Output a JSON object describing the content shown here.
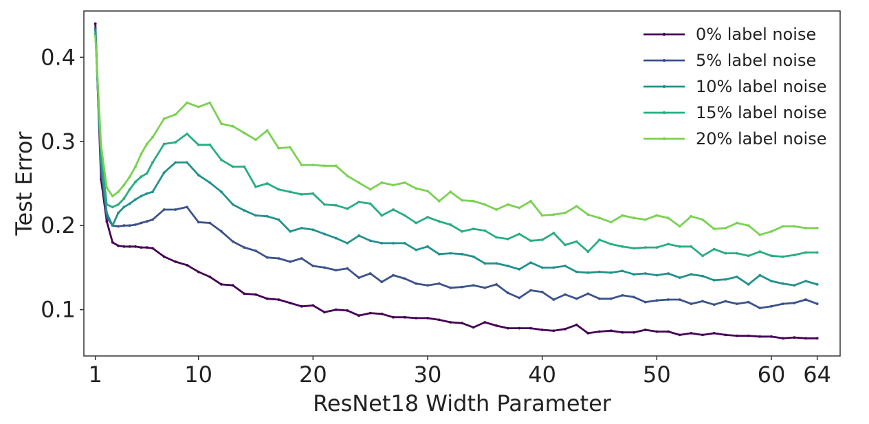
{
  "chart_data": {
    "type": "line",
    "title": "",
    "xlabel": "ResNet18 Width Parameter",
    "ylabel": "Test Error",
    "xlim": [
      0,
      66
    ],
    "ylim": [
      0.045,
      0.455
    ],
    "xticks": [
      1,
      10,
      20,
      30,
      40,
      50,
      60,
      64
    ],
    "yticks": [
      0.1,
      0.2,
      0.3,
      0.4
    ],
    "ytick_labels": [
      "0.1",
      "0.2",
      "0.3",
      "0.4"
    ],
    "grid": false,
    "legend_position": "top-right",
    "x": [
      1,
      1.5,
      2,
      2.5,
      3,
      3.5,
      4,
      4.5,
      5,
      5.5,
      6,
      7,
      8,
      9,
      10,
      11,
      12,
      13,
      14,
      15,
      16,
      17,
      18,
      19,
      20,
      21,
      22,
      23,
      24,
      25,
      26,
      27,
      28,
      29,
      30,
      31,
      32,
      33,
      34,
      35,
      36,
      37,
      38,
      39,
      40,
      41,
      42,
      43,
      44,
      45,
      46,
      47,
      48,
      49,
      50,
      51,
      52,
      53,
      54,
      55,
      56,
      57,
      58,
      59,
      60,
      61,
      62,
      63,
      64
    ],
    "series": [
      {
        "name": "0% label noise",
        "color": "#440154",
        "values": [
          0.44,
          0.255,
          0.205,
          0.18,
          0.176,
          0.175,
          0.175,
          0.175,
          0.174,
          0.174,
          0.173,
          0.163,
          0.157,
          0.153,
          0.145,
          0.139,
          0.13,
          0.129,
          0.119,
          0.118,
          0.113,
          0.112,
          0.108,
          0.104,
          0.105,
          0.097,
          0.1,
          0.099,
          0.093,
          0.096,
          0.095,
          0.091,
          0.091,
          0.09,
          0.09,
          0.088,
          0.085,
          0.084,
          0.079,
          0.085,
          0.081,
          0.078,
          0.078,
          0.078,
          0.076,
          0.075,
          0.077,
          0.082,
          0.072,
          0.074,
          0.075,
          0.073,
          0.073,
          0.076,
          0.074,
          0.074,
          0.07,
          0.072,
          0.07,
          0.072,
          0.07,
          0.069,
          0.069,
          0.068,
          0.068,
          0.066,
          0.067,
          0.066,
          0.066
        ]
      },
      {
        "name": "5% label noise",
        "color": "#3b528b",
        "values": [
          0.435,
          0.265,
          0.21,
          0.2,
          0.199,
          0.2,
          0.2,
          0.201,
          0.203,
          0.205,
          0.207,
          0.219,
          0.219,
          0.222,
          0.204,
          0.203,
          0.193,
          0.181,
          0.174,
          0.17,
          0.162,
          0.161,
          0.157,
          0.161,
          0.152,
          0.15,
          0.147,
          0.149,
          0.138,
          0.143,
          0.133,
          0.141,
          0.137,
          0.131,
          0.129,
          0.131,
          0.126,
          0.127,
          0.129,
          0.126,
          0.13,
          0.12,
          0.114,
          0.123,
          0.121,
          0.112,
          0.118,
          0.113,
          0.119,
          0.113,
          0.113,
          0.117,
          0.115,
          0.109,
          0.111,
          0.112,
          0.112,
          0.107,
          0.11,
          0.106,
          0.11,
          0.107,
          0.109,
          0.102,
          0.104,
          0.107,
          0.108,
          0.112,
          0.107
        ]
      },
      {
        "name": "10% label noise",
        "color": "#21918c",
        "values": [
          0.432,
          0.275,
          0.215,
          0.2,
          0.215,
          0.222,
          0.226,
          0.231,
          0.235,
          0.238,
          0.24,
          0.263,
          0.275,
          0.275,
          0.26,
          0.251,
          0.24,
          0.225,
          0.218,
          0.212,
          0.211,
          0.207,
          0.193,
          0.197,
          0.195,
          0.19,
          0.185,
          0.179,
          0.188,
          0.182,
          0.179,
          0.179,
          0.179,
          0.171,
          0.175,
          0.166,
          0.167,
          0.166,
          0.163,
          0.155,
          0.155,
          0.152,
          0.148,
          0.156,
          0.15,
          0.15,
          0.152,
          0.145,
          0.144,
          0.145,
          0.144,
          0.146,
          0.142,
          0.143,
          0.141,
          0.143,
          0.138,
          0.142,
          0.14,
          0.135,
          0.136,
          0.139,
          0.13,
          0.141,
          0.134,
          0.131,
          0.129,
          0.134,
          0.13
        ]
      },
      {
        "name": "15% label noise",
        "color": "#27ad81",
        "values": [
          0.428,
          0.285,
          0.225,
          0.222,
          0.225,
          0.232,
          0.243,
          0.252,
          0.258,
          0.262,
          0.275,
          0.297,
          0.299,
          0.309,
          0.296,
          0.296,
          0.278,
          0.27,
          0.27,
          0.246,
          0.25,
          0.243,
          0.24,
          0.237,
          0.238,
          0.225,
          0.224,
          0.22,
          0.228,
          0.226,
          0.212,
          0.219,
          0.212,
          0.203,
          0.21,
          0.205,
          0.201,
          0.193,
          0.196,
          0.194,
          0.186,
          0.184,
          0.19,
          0.182,
          0.183,
          0.191,
          0.177,
          0.181,
          0.169,
          0.183,
          0.178,
          0.175,
          0.173,
          0.174,
          0.174,
          0.178,
          0.175,
          0.175,
          0.164,
          0.172,
          0.167,
          0.167,
          0.164,
          0.169,
          0.164,
          0.163,
          0.165,
          0.168,
          0.168
        ]
      },
      {
        "name": "20% label noise",
        "color": "#7ad151",
        "values": [
          0.425,
          0.295,
          0.245,
          0.235,
          0.24,
          0.248,
          0.258,
          0.27,
          0.285,
          0.297,
          0.305,
          0.327,
          0.332,
          0.346,
          0.341,
          0.346,
          0.321,
          0.318,
          0.31,
          0.302,
          0.313,
          0.292,
          0.293,
          0.272,
          0.272,
          0.271,
          0.271,
          0.259,
          0.251,
          0.243,
          0.251,
          0.248,
          0.251,
          0.244,
          0.241,
          0.229,
          0.24,
          0.23,
          0.229,
          0.225,
          0.219,
          0.225,
          0.221,
          0.229,
          0.212,
          0.213,
          0.215,
          0.223,
          0.213,
          0.209,
          0.204,
          0.212,
          0.209,
          0.207,
          0.212,
          0.209,
          0.199,
          0.211,
          0.207,
          0.196,
          0.197,
          0.203,
          0.2,
          0.189,
          0.193,
          0.199,
          0.199,
          0.197,
          0.197
        ]
      }
    ]
  }
}
